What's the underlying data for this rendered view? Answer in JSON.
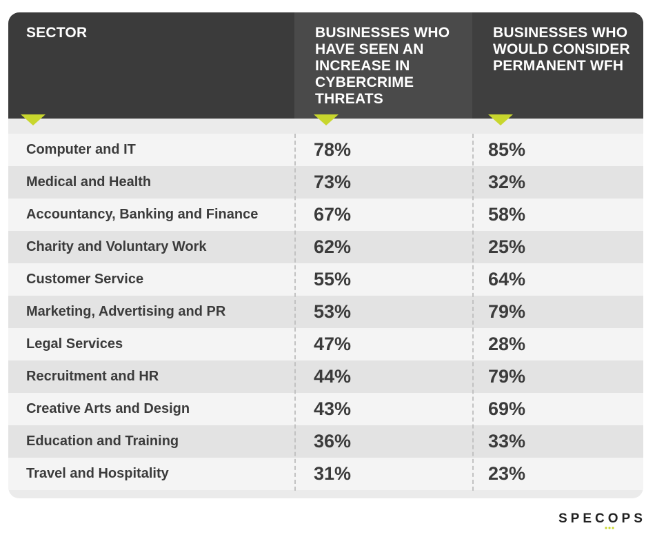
{
  "chart_data": {
    "type": "table",
    "columns": [
      "Sector",
      "Businesses who have seen an increase in cybercrime threats",
      "Businesses who would consider permanent WFH"
    ],
    "rows": [
      {
        "sector": "Computer and IT",
        "cybercrime": "78%",
        "wfh": "85%"
      },
      {
        "sector": "Medical and Health",
        "cybercrime": "73%",
        "wfh": "32%"
      },
      {
        "sector": "Accountancy, Banking and Finance",
        "cybercrime": "67%",
        "wfh": "58%"
      },
      {
        "sector": "Charity and Voluntary Work",
        "cybercrime": "62%",
        "wfh": "25%"
      },
      {
        "sector": "Customer Service",
        "cybercrime": "55%",
        "wfh": "64%"
      },
      {
        "sector": "Marketing, Advertising and PR",
        "cybercrime": "53%",
        "wfh": "79%"
      },
      {
        "sector": "Legal Services",
        "cybercrime": "47%",
        "wfh": "28%"
      },
      {
        "sector": "Recruitment and HR",
        "cybercrime": "44%",
        "wfh": "79%"
      },
      {
        "sector": "Creative Arts and Design",
        "cybercrime": "43%",
        "wfh": "69%"
      },
      {
        "sector": "Education and Training",
        "cybercrime": "36%",
        "wfh": "33%"
      },
      {
        "sector": "Travel and Hospitality",
        "cybercrime": "31%",
        "wfh": "23%"
      }
    ]
  },
  "logo": {
    "text": "SPECOPS"
  },
  "colors": {
    "header_bg": "#3b3b3b",
    "accent": "#c8d62d",
    "text": "#3b3b3b",
    "row_alt": "#e3e3e3"
  }
}
